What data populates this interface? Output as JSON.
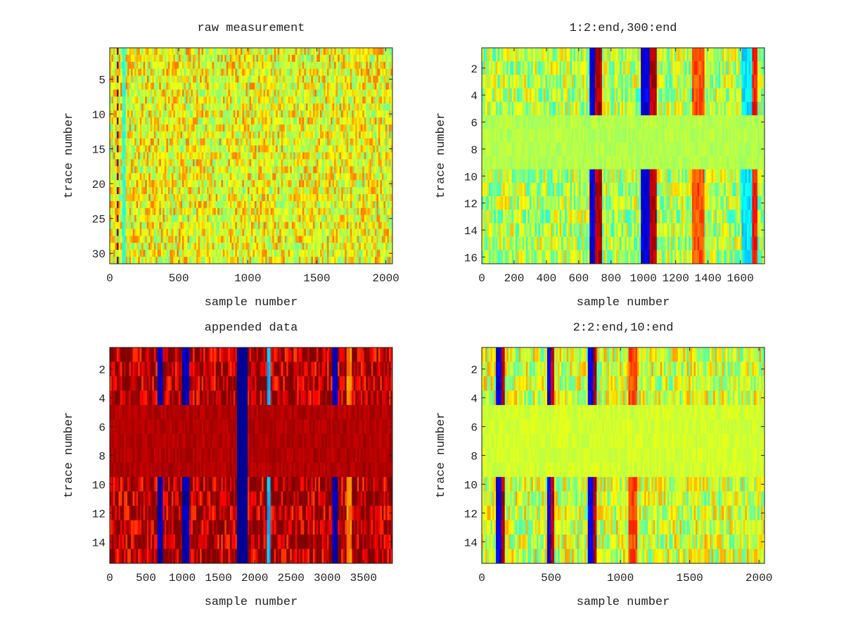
{
  "colors": {
    "axis": "#222222",
    "background": "#ffffff"
  },
  "colormap": "jet",
  "chart_data": [
    {
      "type": "heatmap",
      "title": "raw measurement",
      "xlabel": "sample number",
      "ylabel": "trace number",
      "xlim": [
        0,
        2048
      ],
      "ylim": [
        0.5,
        31.5
      ],
      "y_reversed": true,
      "xticks": [
        "0",
        "500",
        "1000",
        "1500",
        "2000"
      ],
      "xtick_values": [
        0,
        500,
        1000,
        1500,
        2000
      ],
      "yticks": [
        "5",
        "10",
        "15",
        "20",
        "25",
        "30"
      ],
      "ytick_values": [
        5,
        10,
        15,
        20,
        25,
        30
      ],
      "background_level": 0.62,
      "stripes": [
        {
          "x": 62,
          "level": 1.0,
          "width": 8,
          "rows": "alternating"
        },
        {
          "x": 100,
          "level": 0.42,
          "width": 10,
          "rows": "all"
        },
        {
          "x": 800,
          "level": 0.55,
          "width": 40,
          "rows": "alternating"
        },
        {
          "x": 1300,
          "level": 0.55,
          "width": 30,
          "rows": "alternating"
        }
      ]
    },
    {
      "type": "heatmap",
      "title": "1:2:end,300:end",
      "xlabel": "sample number",
      "ylabel": "trace number",
      "xlim": [
        0,
        1750
      ],
      "ylim": [
        0.5,
        16.5
      ],
      "y_reversed": true,
      "xticks": [
        "0",
        "200",
        "400",
        "600",
        "800",
        "1000",
        "1200",
        "1400",
        "1600"
      ],
      "xtick_values": [
        0,
        200,
        400,
        600,
        800,
        1000,
        1200,
        1400,
        1600
      ],
      "yticks": [
        "2",
        "4",
        "6",
        "8",
        "10",
        "12",
        "14",
        "16"
      ],
      "ytick_values": [
        2,
        4,
        6,
        8,
        10,
        12,
        14,
        16
      ],
      "background_level": 0.55,
      "quiet_rows": [
        6,
        7,
        8,
        9
      ],
      "stripes": [
        {
          "x": 690,
          "level": 0.1,
          "width": 25
        },
        {
          "x": 720,
          "level": 0.95,
          "width": 20
        },
        {
          "x": 1010,
          "level": 0.1,
          "width": 30
        },
        {
          "x": 1060,
          "level": 0.95,
          "width": 25
        },
        {
          "x": 1340,
          "level": 0.8,
          "width": 40
        },
        {
          "x": 1650,
          "level": 0.35,
          "width": 40
        },
        {
          "x": 1690,
          "level": 0.85,
          "width": 20
        }
      ]
    },
    {
      "type": "heatmap",
      "title": "appended data",
      "xlabel": "sample number",
      "ylabel": "trace number",
      "xlim": [
        0,
        3900
      ],
      "ylim": [
        0.5,
        15.5
      ],
      "y_reversed": true,
      "xticks": [
        "0",
        "500",
        "1000",
        "1500",
        "2000",
        "2500",
        "3000",
        "3500"
      ],
      "xtick_values": [
        0,
        500,
        1000,
        1500,
        2000,
        2500,
        3000,
        3500
      ],
      "yticks": [
        "2",
        "4",
        "6",
        "8",
        "10",
        "12",
        "14"
      ],
      "ytick_values": [
        2,
        4,
        6,
        8,
        10,
        12,
        14
      ],
      "background_level": 0.95,
      "quiet_rows": [
        5,
        6,
        7,
        8,
        9
      ],
      "band": {
        "x0": 1750,
        "x1": 1900,
        "level": 0.02
      },
      "stripes": [
        {
          "x": 700,
          "level": 0.05,
          "width": 30
        },
        {
          "x": 1050,
          "level": 0.05,
          "width": 40
        },
        {
          "x": 2200,
          "level": 0.3,
          "width": 30
        },
        {
          "x": 3100,
          "level": 0.05,
          "width": 40
        },
        {
          "x": 3300,
          "level": 0.75,
          "width": 40
        }
      ]
    },
    {
      "type": "heatmap",
      "title": "2:2:end,10:end",
      "xlabel": "sample number",
      "ylabel": "trace number",
      "xlim": [
        0,
        2040
      ],
      "ylim": [
        0.5,
        15.5
      ],
      "y_reversed": true,
      "xticks": [
        "0",
        "500",
        "1000",
        "1500",
        "2000"
      ],
      "xtick_values": [
        0,
        500,
        1000,
        1500,
        2000
      ],
      "yticks": [
        "2",
        "4",
        "6",
        "8",
        "10",
        "12",
        "14"
      ],
      "ytick_values": [
        2,
        4,
        6,
        8,
        10,
        12,
        14
      ],
      "background_level": 0.58,
      "quiet_rows": [
        5,
        6,
        7,
        8,
        9
      ],
      "stripes": [
        {
          "x": 120,
          "level": 0.1,
          "width": 20
        },
        {
          "x": 150,
          "level": 0.95,
          "width": 15
        },
        {
          "x": 490,
          "level": 0.1,
          "width": 15
        },
        {
          "x": 505,
          "level": 0.95,
          "width": 12
        },
        {
          "x": 790,
          "level": 0.1,
          "width": 20
        },
        {
          "x": 820,
          "level": 0.95,
          "width": 15
        },
        {
          "x": 1090,
          "level": 0.8,
          "width": 30
        }
      ]
    }
  ]
}
